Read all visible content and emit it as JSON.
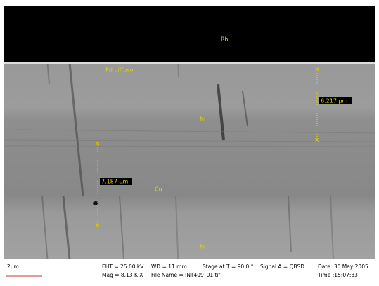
{
  "labels": [
    "Rh",
    "Pd diffuso",
    "Ni",
    "Cu",
    "Ni"
  ],
  "measurements": [
    "6.217 µm",
    "7.187 µm"
  ],
  "info_bar": {
    "scale": "2µm",
    "row1": [
      "EHT = 25.00 kV",
      "WD = 11 mm",
      "Stage at T = 90.0 °",
      "Signal A = QBSD",
      "Date :30 May 2005"
    ],
    "row2": [
      "Mag = 8.13 K X",
      "File Name = INT409_01.tif",
      "Time :15:07:33"
    ]
  }
}
